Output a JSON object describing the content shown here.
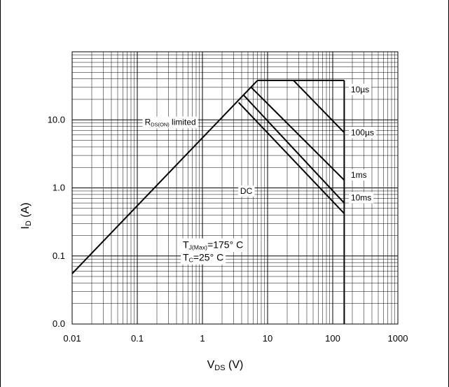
{
  "chart_data": {
    "type": "line",
    "scale": {
      "x": "log",
      "y": "log"
    },
    "xlim": [
      0.01,
      1000
    ],
    "ylim": [
      0.01,
      100
    ],
    "grid": true,
    "xticks": [
      {
        "value": 0.01,
        "label": "0.01"
      },
      {
        "value": 0.1,
        "label": "0.1"
      },
      {
        "value": 1,
        "label": "1"
      },
      {
        "value": 10,
        "label": "10"
      },
      {
        "value": 100,
        "label": "100"
      },
      {
        "value": 1000,
        "label": "1000"
      }
    ],
    "yticks": [
      {
        "value": 0.01,
        "label": "0.0"
      },
      {
        "value": 0.1,
        "label": "0.1"
      },
      {
        "value": 1,
        "label": "1.0"
      },
      {
        "value": 10,
        "label": "10.0"
      }
    ],
    "xlabel": {
      "main": "V",
      "sub": "DS",
      "suffix": " (V)"
    },
    "ylabel": {
      "main": "I",
      "sub": "D",
      "suffix": " (A)"
    },
    "series": [
      {
        "key": "rds",
        "points": [
          [
            0.01,
            0.055
          ],
          [
            7,
            38
          ]
        ]
      },
      {
        "key": "10us",
        "points": [
          [
            7,
            38
          ],
          [
            150,
            38
          ]
        ]
      },
      {
        "key": "100us",
        "points": [
          [
            25,
            38
          ],
          [
            150,
            6.5
          ]
        ]
      },
      {
        "key": "1ms",
        "points": [
          [
            5.6,
            30
          ],
          [
            150,
            1.3
          ]
        ]
      },
      {
        "key": "10ms",
        "points": [
          [
            4.3,
            23
          ],
          [
            150,
            0.6
          ]
        ]
      },
      {
        "key": "dc",
        "points": [
          [
            3.6,
            18
          ],
          [
            150,
            0.42
          ]
        ]
      },
      {
        "key": "vmax",
        "points": [
          [
            150,
            38
          ],
          [
            150,
            0.01
          ]
        ]
      }
    ],
    "annotations": [
      {
        "key": "10us",
        "text": "10µs",
        "x": 190,
        "y": 28
      },
      {
        "key": "100us",
        "text": "100µs",
        "x": 190,
        "y": 6.5
      },
      {
        "key": "1ms",
        "text": "1ms",
        "x": 190,
        "y": 1.55
      },
      {
        "key": "10ms",
        "text": "10ms",
        "x": 190,
        "y": 0.72
      },
      {
        "key": "dc",
        "text": "DC",
        "x": 3.8,
        "y": 0.9
      }
    ],
    "rds_label": {
      "main": "R",
      "sub": "DS(ON)",
      "suffix": " limited",
      "x": 0.13,
      "y": 8.4
    },
    "conditions": {
      "x": 0.5,
      "tj": {
        "main": "T",
        "sub": "J(Max)",
        "suffix": "=175° C",
        "y": 0.13
      },
      "tc": {
        "main": "T",
        "sub": "C",
        "suffix": "=25° C",
        "y": 0.085
      }
    }
  }
}
